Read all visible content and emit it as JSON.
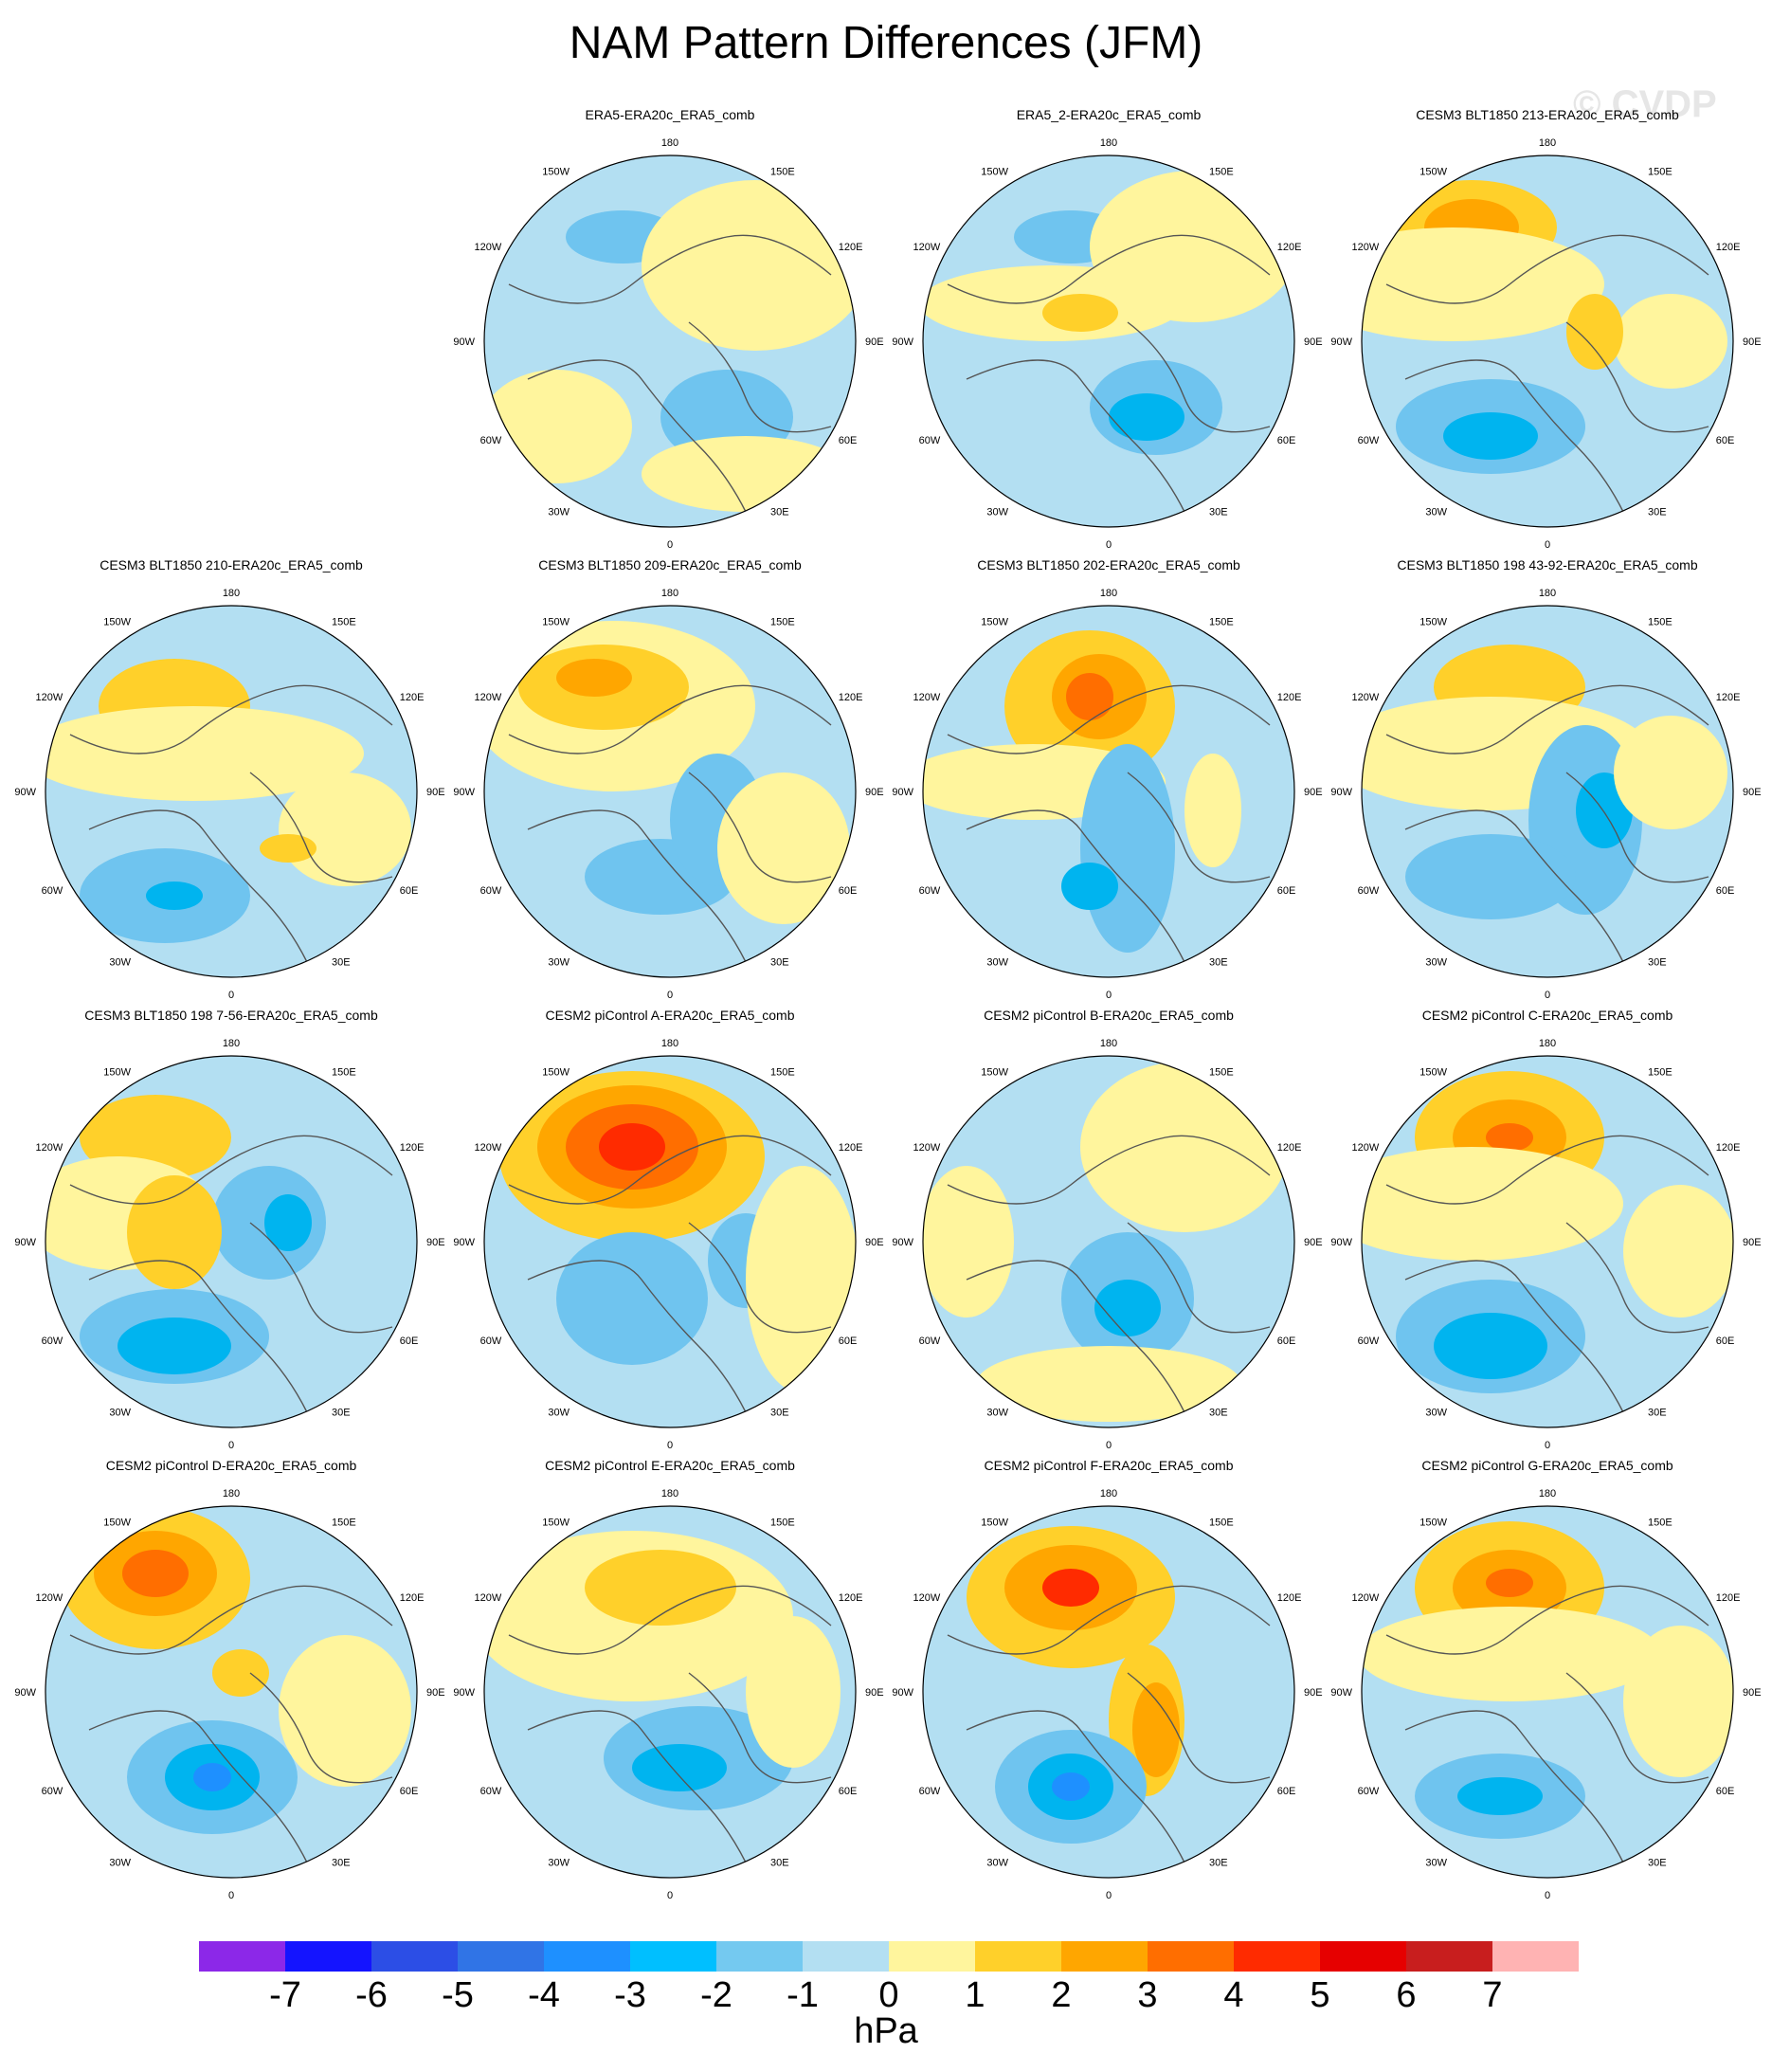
{
  "title": "NAM Pattern Differences (JFM)",
  "watermark": "© CVDP",
  "lon_labels": {
    "top": "180",
    "bottom": "0",
    "left": "90W",
    "right": "90E",
    "tl1": "150W",
    "tr1": "150E",
    "tl2": "120W",
    "tr2": "120E",
    "bl1": "60W",
    "br1": "60E",
    "bl2": "30W",
    "br2": "30E"
  },
  "colors": {
    "bg": "#b3dff2",
    "pos1": "#fff59d",
    "pos2": "#ffd02a",
    "pos3": "#ffa600",
    "pos4": "#ff6e00",
    "pos5": "#ff2b00",
    "neg2": "#6fc4ef",
    "neg3": "#00b4ef",
    "neg4": "#1e90ff",
    "coast": "#555555"
  },
  "panels": [
    {
      "title": "",
      "empty": true
    },
    {
      "title": "ERA5-ERA20c_ERA5_comb"
    },
    {
      "title": "ERA5_2-ERA20c_ERA5_comb"
    },
    {
      "title": "CESM3 BLT1850 213-ERA20c_ERA5_comb"
    },
    {
      "title": "CESM3 BLT1850 210-ERA20c_ERA5_comb"
    },
    {
      "title": "CESM3 BLT1850 209-ERA20c_ERA5_comb"
    },
    {
      "title": "CESM3 BLT1850 202-ERA20c_ERA5_comb"
    },
    {
      "title": "CESM3 BLT1850 198 43-92-ERA20c_ERA5_comb"
    },
    {
      "title": "CESM3 BLT1850 198 7-56-ERA20c_ERA5_comb"
    },
    {
      "title": "CESM2 piControl A-ERA20c_ERA5_comb"
    },
    {
      "title": "CESM2 piControl B-ERA20c_ERA5_comb"
    },
    {
      "title": "CESM2 piControl C-ERA20c_ERA5_comb"
    },
    {
      "title": "CESM2 piControl D-ERA20c_ERA5_comb"
    },
    {
      "title": "CESM2 piControl E-ERA20c_ERA5_comb"
    },
    {
      "title": "CESM2 piControl F-ERA20c_ERA5_comb"
    },
    {
      "title": "CESM2 piControl G-ERA20c_ERA5_comb"
    }
  ],
  "colorbar": {
    "colors": [
      "#8c28e8",
      "#1414ff",
      "#2c4ee6",
      "#3074e6",
      "#1e90ff",
      "#00bfff",
      "#74c9f0",
      "#b3dff2",
      "#fff59d",
      "#ffd02a",
      "#ffa600",
      "#ff6e00",
      "#ff2b00",
      "#e60000",
      "#c81e1e",
      "#ffb3b3"
    ],
    "labels": [
      "-7",
      "-6",
      "-5",
      "-4",
      "-3",
      "-2",
      "-1",
      "0",
      "1",
      "2",
      "3",
      "4",
      "5",
      "6",
      "7"
    ],
    "units": "hPa"
  }
}
